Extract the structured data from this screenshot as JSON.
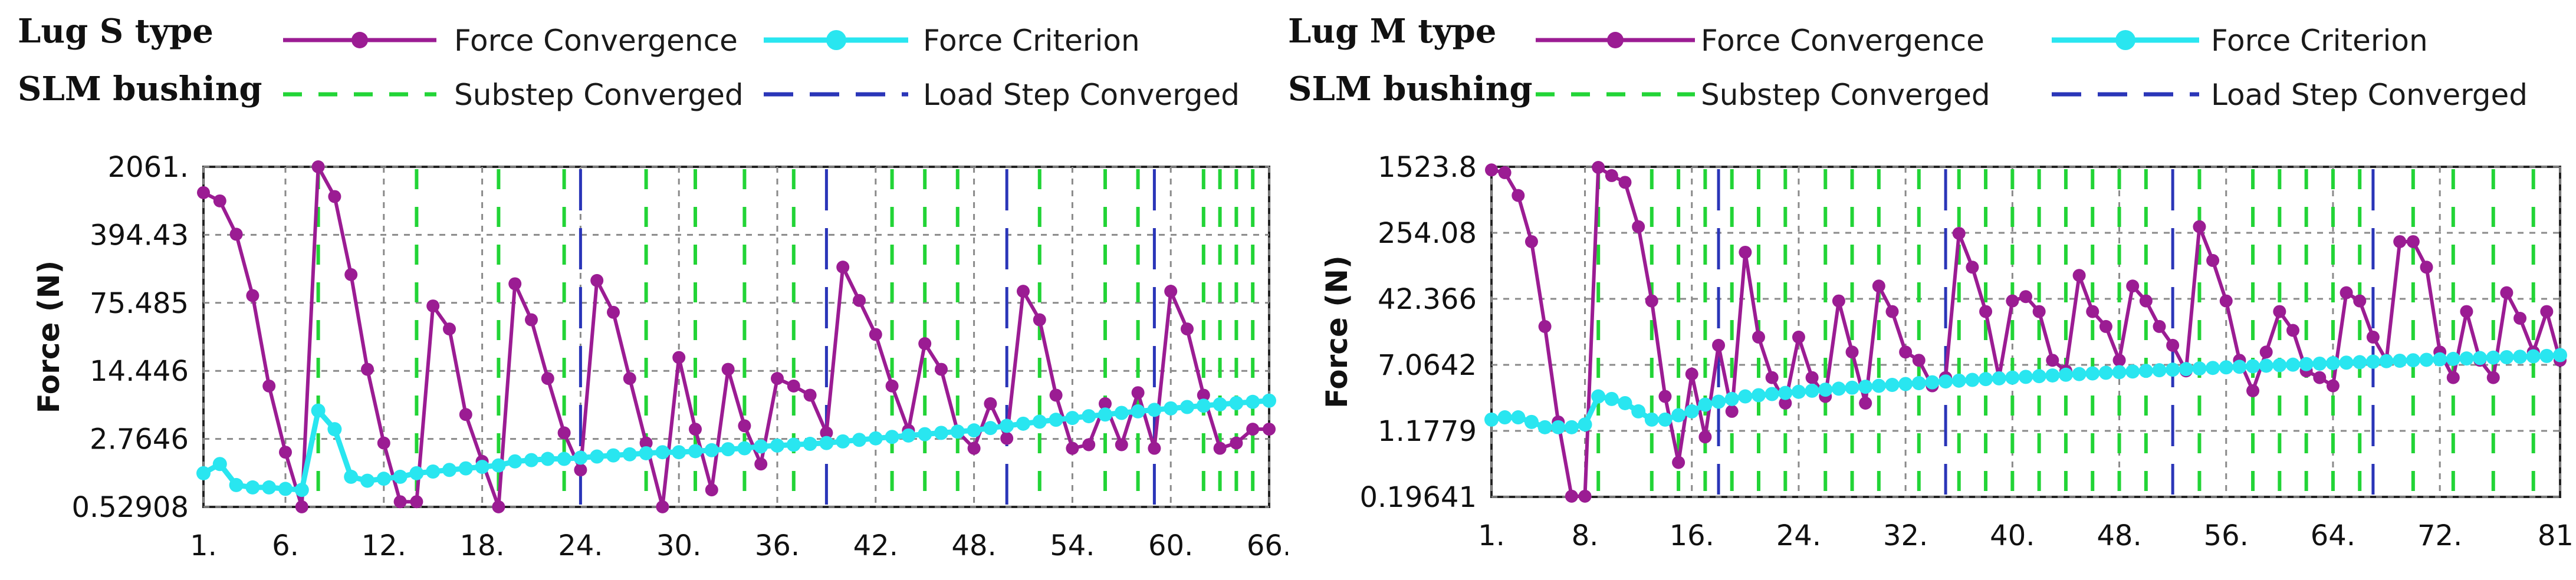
{
  "colors": {
    "convergence": "#9b1c93",
    "criterion": "#29e6f0",
    "substep": "#22d436",
    "loadstep": "#2a35b8",
    "grid": "#8a8a8a"
  },
  "legend": {
    "force_convergence": "Force Convergence",
    "force_criterion": "Force Criterion",
    "substep_converged": "Substep Converged",
    "load_step_converged": "Load Step Converged"
  },
  "chart_data": [
    {
      "type": "line",
      "title_line1": "Lug S type",
      "title_line2": "SLM bushing",
      "ylabel": "Force (N)",
      "yscale": "log",
      "ylim": [
        0.52908,
        2061.0
      ],
      "ytick_labels": [
        "2061.",
        "394.43",
        "75.485",
        "14.446",
        "2.7646",
        "0.52908"
      ],
      "ytick_values": [
        2061.0,
        394.43,
        75.485,
        14.446,
        2.7646,
        0.52908
      ],
      "xlim": [
        1,
        66
      ],
      "xtick_labels": [
        "1.",
        "6.",
        "12.",
        "18.",
        "24.",
        "30.",
        "36.",
        "42.",
        "48.",
        "54.",
        "60.",
        "66."
      ],
      "xtick_values": [
        1,
        6,
        12,
        18,
        24,
        30,
        36,
        42,
        48,
        54,
        60,
        66
      ],
      "substep_converged_x": [
        8,
        14,
        19,
        23,
        28,
        31,
        34,
        37,
        43,
        45,
        47,
        52,
        56,
        58,
        62,
        63,
        64,
        65
      ],
      "load_step_converged_x": [
        24,
        39,
        50,
        59
      ],
      "series": [
        {
          "name": "Force Convergence",
          "x": [
            1,
            2,
            3,
            4,
            5,
            6,
            7,
            8,
            9,
            10,
            11,
            12,
            13,
            14,
            15,
            16,
            17,
            18,
            19,
            20,
            21,
            22,
            23,
            24,
            25,
            26,
            27,
            28,
            29,
            30,
            31,
            32,
            33,
            34,
            35,
            36,
            37,
            38,
            39,
            40,
            41,
            42,
            43,
            44,
            45,
            46,
            47,
            48,
            49,
            50,
            51,
            52,
            53,
            54,
            55,
            56,
            57,
            58,
            59,
            60,
            61,
            62,
            63,
            64,
            65,
            66
          ],
          "y": [
            1100,
            900,
            400,
            90,
            10,
            2,
            0.53,
            2061,
            1000,
            150,
            15,
            2.5,
            0.6,
            0.6,
            70,
            40,
            5,
            1.6,
            0.53,
            120,
            50,
            12,
            3.2,
            1.3,
            130,
            60,
            12,
            2.5,
            0.53,
            20,
            3.5,
            0.8,
            15,
            3.8,
            1.5,
            12,
            10,
            8,
            3.2,
            180,
            80,
            35,
            10,
            3.4,
            28,
            15,
            3.3,
            2.2,
            6.5,
            2.8,
            100,
            50,
            8,
            2.2,
            2.4,
            6.5,
            2.4,
            8.5,
            2.2,
            100,
            40,
            8,
            2.2,
            2.5,
            3.5,
            3.5
          ]
        },
        {
          "name": "Force Criterion",
          "x": [
            1,
            2,
            3,
            4,
            5,
            6,
            7,
            8,
            9,
            10,
            11,
            12,
            13,
            14,
            15,
            16,
            17,
            18,
            19,
            20,
            21,
            22,
            23,
            24,
            25,
            26,
            27,
            28,
            29,
            30,
            31,
            32,
            33,
            34,
            35,
            36,
            37,
            38,
            39,
            40,
            41,
            42,
            43,
            44,
            45,
            46,
            47,
            48,
            49,
            50,
            51,
            52,
            53,
            54,
            55,
            56,
            57,
            58,
            59,
            60,
            61,
            62,
            63,
            64,
            65,
            66
          ],
          "y": [
            1.2,
            1.5,
            0.9,
            0.85,
            0.85,
            0.82,
            0.8,
            5.5,
            3.5,
            1.1,
            1.0,
            1.05,
            1.1,
            1.2,
            1.25,
            1.3,
            1.35,
            1.4,
            1.45,
            1.6,
            1.65,
            1.7,
            1.7,
            1.75,
            1.8,
            1.85,
            1.9,
            1.95,
            2.0,
            2.0,
            2.05,
            2.1,
            2.15,
            2.2,
            2.3,
            2.35,
            2.4,
            2.45,
            2.5,
            2.6,
            2.7,
            2.8,
            2.9,
            3.0,
            3.1,
            3.2,
            3.3,
            3.4,
            3.6,
            3.8,
            4.0,
            4.2,
            4.4,
            4.6,
            4.8,
            5.0,
            5.2,
            5.4,
            5.6,
            5.8,
            6.0,
            6.2,
            6.4,
            6.6,
            6.8,
            7.0
          ]
        }
      ]
    },
    {
      "type": "line",
      "title_line1": "Lug M type",
      "title_line2": "SLM bushing",
      "ylabel": "Force (N)",
      "yscale": "log",
      "ylim": [
        0.19641,
        1523.8
      ],
      "ytick_labels": [
        "1523.8",
        "254.08",
        "42.366",
        "7.0642",
        "1.1779",
        "0.19641"
      ],
      "ytick_values": [
        1523.8,
        254.08,
        42.366,
        7.0642,
        1.1779,
        0.19641
      ],
      "xlim": [
        1,
        81
      ],
      "xtick_labels": [
        "1.",
        "8.",
        "16.",
        "24.",
        "32.",
        "40.",
        "48.",
        "56.",
        "64.",
        "72.",
        "81."
      ],
      "xtick_values": [
        1,
        8,
        16,
        24,
        32,
        40,
        48,
        56,
        64,
        72,
        81
      ],
      "substep_converged_x": [
        9,
        13,
        15,
        17,
        19,
        21,
        23,
        26,
        28,
        30,
        33,
        36,
        38,
        40,
        42,
        44,
        46,
        48,
        50,
        54,
        58,
        60,
        62,
        64,
        66,
        70,
        73,
        76,
        79
      ],
      "load_step_converged_x": [
        18,
        35,
        52,
        67
      ],
      "series": [
        {
          "name": "Force Convergence",
          "x": [
            1,
            2,
            3,
            4,
            5,
            6,
            7,
            8,
            9,
            10,
            11,
            12,
            13,
            14,
            15,
            16,
            17,
            18,
            19,
            20,
            21,
            22,
            23,
            24,
            25,
            26,
            27,
            28,
            29,
            30,
            31,
            32,
            33,
            34,
            35,
            36,
            37,
            38,
            39,
            40,
            41,
            42,
            43,
            44,
            45,
            46,
            47,
            48,
            49,
            50,
            51,
            52,
            53,
            54,
            55,
            56,
            57,
            58,
            59,
            60,
            61,
            62,
            63,
            64,
            65,
            66,
            67,
            68,
            69,
            70,
            71,
            72,
            73,
            74,
            75,
            76,
            77,
            78,
            79,
            80,
            81
          ],
          "y": [
            1400,
            1300,
            700,
            200,
            20,
            1.5,
            0.2,
            0.2,
            1500,
            1200,
            1000,
            300,
            40,
            3,
            0.5,
            5.5,
            1,
            12,
            2,
            150,
            15,
            5,
            2.5,
            15,
            5,
            3,
            40,
            10,
            2.5,
            60,
            30,
            10,
            8,
            4,
            5,
            250,
            100,
            30,
            5,
            40,
            45,
            30,
            8,
            6,
            80,
            30,
            20,
            8,
            60,
            40,
            20,
            12,
            6,
            300,
            120,
            40,
            8,
            3.5,
            10,
            30,
            18,
            6,
            5,
            4,
            50,
            40,
            15,
            8,
            200,
            200,
            100,
            10,
            5,
            30,
            8,
            5,
            50,
            25,
            10,
            30,
            8
          ]
        },
        {
          "name": "Force Criterion",
          "x": [
            1,
            2,
            3,
            4,
            5,
            6,
            7,
            8,
            9,
            10,
            11,
            12,
            13,
            14,
            15,
            16,
            17,
            18,
            19,
            20,
            21,
            22,
            23,
            24,
            25,
            26,
            27,
            28,
            29,
            30,
            31,
            32,
            33,
            34,
            35,
            36,
            37,
            38,
            39,
            40,
            41,
            42,
            43,
            44,
            45,
            46,
            47,
            48,
            49,
            50,
            51,
            52,
            53,
            54,
            55,
            56,
            57,
            58,
            59,
            60,
            61,
            62,
            63,
            64,
            65,
            66,
            67,
            68,
            69,
            70,
            71,
            72,
            73,
            74,
            75,
            76,
            77,
            78,
            79,
            80,
            81
          ],
          "y": [
            1.6,
            1.7,
            1.7,
            1.5,
            1.3,
            1.3,
            1.3,
            1.4,
            3,
            2.8,
            2.5,
            2,
            1.6,
            1.6,
            1.8,
            2,
            2.4,
            2.6,
            2.8,
            3,
            3.1,
            3.2,
            3.3,
            3.4,
            3.5,
            3.6,
            3.7,
            3.8,
            3.9,
            4,
            4.1,
            4.2,
            4.3,
            4.4,
            4.5,
            4.6,
            4.7,
            4.8,
            4.9,
            5,
            5.1,
            5.2,
            5.3,
            5.4,
            5.5,
            5.6,
            5.7,
            5.8,
            5.9,
            6,
            6.1,
            6.2,
            6.3,
            6.4,
            6.5,
            6.6,
            6.7,
            6.8,
            6.9,
            7,
            7.1,
            7.2,
            7.3,
            7.4,
            7.5,
            7.6,
            7.7,
            7.8,
            7.9,
            8,
            8.1,
            8.2,
            8.3,
            8.4,
            8.5,
            8.6,
            8.7,
            8.8,
            8.9,
            9,
            9.2
          ]
        }
      ]
    }
  ]
}
